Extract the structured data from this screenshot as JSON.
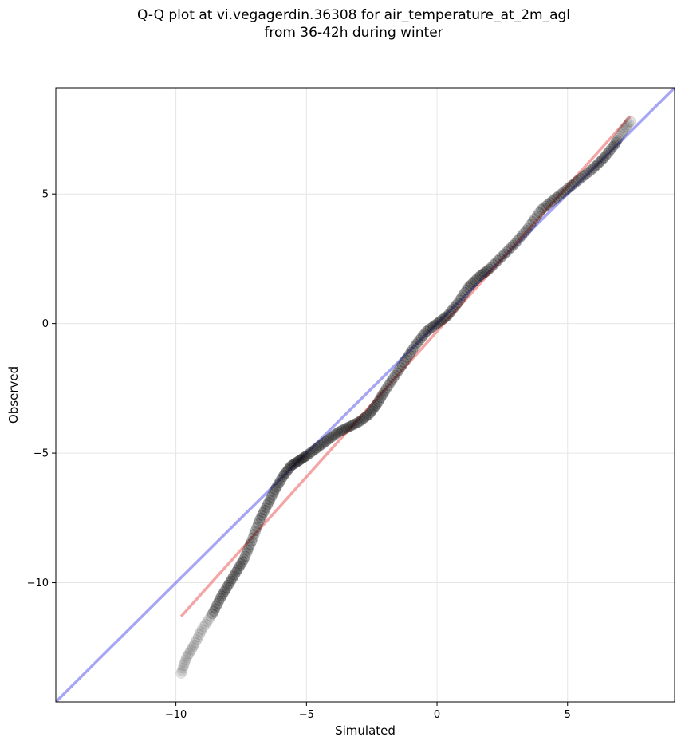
{
  "chart_data": {
    "type": "scatter",
    "title_lines": [
      "Q-Q plot at vi.vegagerdin.36308 for air_temperature_at_2m_agl",
      "from 36-42h during winter"
    ],
    "xlabel": "Simulated",
    "ylabel": "Observed",
    "xlim": [
      -14.6,
      9.1
    ],
    "ylim": [
      -14.6,
      9.1
    ],
    "xticks": [
      -10,
      -5,
      0,
      5
    ],
    "yticks": [
      -10,
      -5,
      0,
      5
    ],
    "xtick_labels": [
      "−10",
      "−5",
      "0",
      "5"
    ],
    "ytick_labels": [
      "−10",
      "−5",
      "0",
      "5"
    ],
    "grid": true,
    "reference_lines": [
      {
        "kind": "identity",
        "color": "#7777ee",
        "x": [
          -14.6,
          9.1
        ],
        "y": [
          -14.6,
          9.1
        ]
      },
      {
        "kind": "fit",
        "color": "#ee7777",
        "x": [
          -9.8,
          7.4
        ],
        "y": [
          -11.3,
          8.0
        ]
      }
    ],
    "quantile_curve": {
      "color": "#000000",
      "x": [
        -9.8,
        -9.6,
        -9.3,
        -9.0,
        -8.6,
        -8.3,
        -8.0,
        -7.7,
        -7.4,
        -7.1,
        -6.8,
        -6.5,
        -6.2,
        -5.9,
        -5.6,
        -5.3,
        -5.0,
        -4.6,
        -4.2,
        -3.8,
        -3.4,
        -3.0,
        -2.6,
        -2.3,
        -2.0,
        -1.6,
        -1.2,
        -0.8,
        -0.4,
        0.0,
        0.4,
        0.8,
        1.2,
        1.6,
        2.0,
        2.5,
        3.0,
        3.5,
        4.0,
        4.5,
        5.0,
        5.5,
        6.0,
        6.4,
        6.8,
        7.1,
        7.4
      ],
      "y": [
        -13.5,
        -12.9,
        -12.4,
        -11.8,
        -11.2,
        -10.6,
        -10.1,
        -9.6,
        -9.1,
        -8.4,
        -7.6,
        -7.0,
        -6.4,
        -5.9,
        -5.5,
        -5.3,
        -5.1,
        -4.8,
        -4.5,
        -4.2,
        -4.0,
        -3.8,
        -3.5,
        -3.1,
        -2.6,
        -2.0,
        -1.4,
        -0.8,
        -0.3,
        0.0,
        0.3,
        0.8,
        1.4,
        1.8,
        2.1,
        2.6,
        3.1,
        3.7,
        4.4,
        4.8,
        5.2,
        5.6,
        6.0,
        6.4,
        6.9,
        7.4,
        7.8
      ]
    }
  }
}
